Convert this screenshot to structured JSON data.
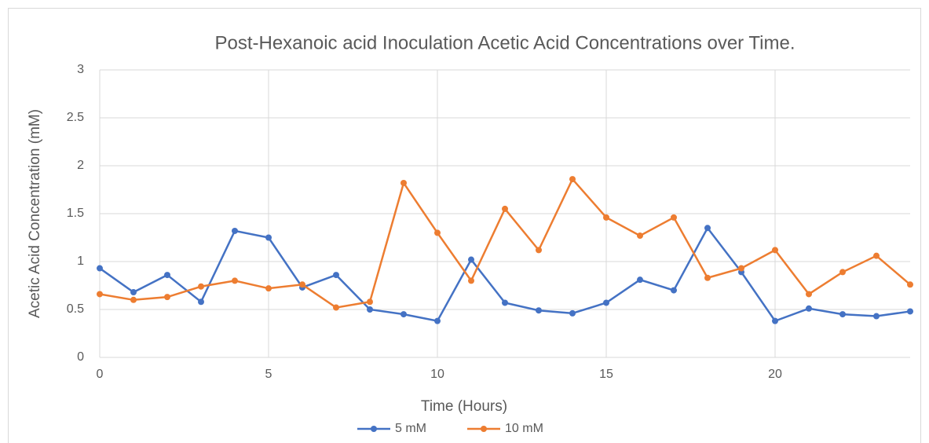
{
  "chart_data": {
    "type": "line",
    "title": "Post-Hexanoic acid Inoculation Acetic Acid Concentrations over Time.",
    "x_label": "Time (Hours)",
    "y_label": "Acetic Acid Concentration (mM)",
    "x": [
      0,
      1,
      2,
      3,
      4,
      5,
      6,
      7,
      8,
      9,
      10,
      11,
      12,
      13,
      14,
      15,
      16,
      17,
      18,
      19,
      20,
      21,
      22,
      23,
      24
    ],
    "series": [
      {
        "name": "5 mM",
        "color": "#4472c4",
        "values": [
          0.93,
          0.68,
          0.86,
          0.58,
          1.32,
          1.25,
          0.73,
          0.86,
          0.5,
          0.45,
          0.38,
          1.02,
          0.57,
          0.49,
          0.46,
          0.57,
          0.81,
          0.7,
          1.35,
          0.89,
          0.38,
          0.51,
          0.45,
          0.43,
          0.48
        ]
      },
      {
        "name": "10 mM",
        "color": "#ed7d31",
        "values": [
          0.66,
          0.6,
          0.63,
          0.74,
          0.8,
          0.72,
          0.76,
          0.52,
          0.58,
          1.82,
          1.3,
          0.8,
          1.55,
          1.12,
          1.86,
          1.46,
          1.27,
          1.46,
          0.83,
          0.93,
          1.12,
          0.66,
          0.89,
          1.06,
          0.76
        ]
      }
    ],
    "xlim": [
      0,
      24
    ],
    "xticks": [
      0,
      5,
      10,
      15,
      20
    ],
    "ylim": [
      0,
      3
    ],
    "yticks": [
      0,
      0.5,
      1,
      1.5,
      2,
      2.5,
      3
    ],
    "grid": true,
    "legend": "bottom"
  }
}
